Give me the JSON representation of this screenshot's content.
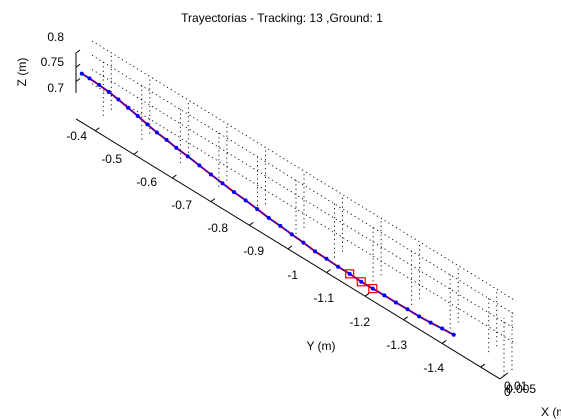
{
  "chart_data": {
    "type": "line",
    "title": "Trayectorias - Tracking: 13 ,Ground: 1",
    "xlabel": "X (m)",
    "ylabel": "Y (m)",
    "zlabel": "Z (m)",
    "grid": true,
    "y_ticks": [
      "-0.4",
      "-0.5",
      "-0.6",
      "-0.7",
      "-0.8",
      "-0.9",
      "-1",
      "-1.1",
      "-1.2",
      "-1.3",
      "-1.4"
    ],
    "z_ticks": [
      "0.8",
      "0.75",
      "0.7"
    ],
    "x_ticks": [
      "0.01",
      "0.005",
      "0"
    ],
    "series": [
      {
        "name": "",
        "color": "#ff0000",
        "marker": "none",
        "y": [
          -0.365,
          -0.385,
          -0.41,
          -0.435,
          -0.46,
          -0.485,
          -0.51,
          -0.535,
          -0.56,
          -0.585,
          -0.61,
          -0.64,
          -0.67,
          -0.7,
          -0.73,
          -0.76,
          -0.79,
          -0.82,
          -0.85,
          -0.88,
          -0.91,
          -0.94,
          -0.97,
          -1.0,
          -1.03,
          -1.06,
          -1.09,
          -1.12,
          -1.15,
          -1.18,
          -1.21,
          -1.24,
          -1.27,
          -1.3,
          -1.33
        ],
        "z": [
          0.74,
          0.74,
          0.738,
          0.734,
          0.728,
          0.72,
          0.712,
          0.703,
          0.695,
          0.69,
          0.683,
          0.678,
          0.671,
          0.664,
          0.658,
          0.652,
          0.648,
          0.642,
          0.636,
          0.633,
          0.628,
          0.624,
          0.618,
          0.617,
          0.614,
          0.614,
          0.611,
          0.612,
          0.613,
          0.613,
          0.614,
          0.614,
          0.617,
          0.621,
          0.624
        ],
        "x": [
          0.005,
          0.005,
          0.005,
          0.005,
          0.005,
          0.005,
          0.005,
          0.005,
          0.005,
          0.005,
          0.005,
          0.005,
          0.005,
          0.005,
          0.005,
          0.005,
          0.005,
          0.005,
          0.005,
          0.005,
          0.005,
          0.005,
          0.005,
          0.005,
          0.005,
          0.005,
          0.005,
          0.005,
          0.005,
          0.005,
          0.005,
          0.005,
          0.005,
          0.005,
          0.005
        ]
      },
      {
        "name": "",
        "color": "#0000ff",
        "marker": "dot",
        "y": [
          -0.365,
          -0.385,
          -0.41,
          -0.435,
          -0.46,
          -0.485,
          -0.51,
          -0.535,
          -0.56,
          -0.585,
          -0.61,
          -0.64,
          -0.67,
          -0.7,
          -0.73,
          -0.76,
          -0.79,
          -0.82,
          -0.85,
          -0.88,
          -0.91,
          -0.94,
          -0.97,
          -1.0,
          -1.03,
          -1.06,
          -1.09,
          -1.12,
          -1.15,
          -1.18,
          -1.21,
          -1.24,
          -1.27,
          -1.3,
          -1.33
        ],
        "z": [
          0.74,
          0.74,
          0.738,
          0.734,
          0.728,
          0.72,
          0.712,
          0.703,
          0.695,
          0.69,
          0.683,
          0.678,
          0.671,
          0.664,
          0.658,
          0.652,
          0.648,
          0.642,
          0.636,
          0.633,
          0.628,
          0.624,
          0.618,
          0.617,
          0.614,
          0.614,
          0.611,
          0.612,
          0.613,
          0.613,
          0.614,
          0.614,
          0.617,
          0.621,
          0.624
        ],
        "x": [
          0.005,
          0.005,
          0.005,
          0.005,
          0.005,
          0.005,
          0.005,
          0.005,
          0.005,
          0.005,
          0.005,
          0.005,
          0.005,
          0.005,
          0.005,
          0.005,
          0.005,
          0.005,
          0.005,
          0.005,
          0.005,
          0.005,
          0.005,
          0.005,
          0.005,
          0.005,
          0.005,
          0.005,
          0.005,
          0.005,
          0.005,
          0.005,
          0.005,
          0.005,
          0.005
        ]
      },
      {
        "name": "",
        "color": "#ff0000",
        "marker": "square",
        "y": [
          -1.06,
          -1.09,
          -1.12
        ],
        "z": [
          0.614,
          0.611,
          0.612
        ],
        "x": [
          0.005,
          0.005,
          0.005
        ]
      }
    ]
  }
}
